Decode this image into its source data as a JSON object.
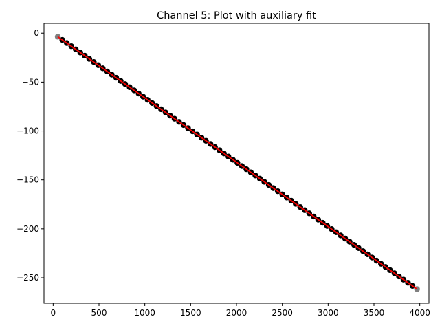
{
  "chart_data": {
    "type": "scatter",
    "title": "Channel 5: Plot with auxiliary fit",
    "xlabel": "",
    "ylabel": "",
    "xlim": [
      -100,
      4100
    ],
    "ylim": [
      -276,
      10
    ],
    "xticks": [
      0,
      500,
      1000,
      1500,
      2000,
      2500,
      3000,
      3500,
      4000
    ],
    "yticks": [
      0,
      -50,
      -100,
      -150,
      -200,
      -250
    ],
    "grid": false,
    "series": [
      {
        "kind": "points",
        "color": "#000000",
        "x_start": 100,
        "x_end": 3920,
        "n": 79,
        "y_start": -6.9,
        "y_end": -258.3
      },
      {
        "kind": "points",
        "color": "#808080",
        "x": [
          50,
          3970
        ],
        "y": [
          -3.6,
          -261.6
        ]
      },
      {
        "kind": "line",
        "color": "#ff0000",
        "x": [
          50,
          3970
        ],
        "y": [
          -3.6,
          -261.6
        ]
      }
    ]
  }
}
